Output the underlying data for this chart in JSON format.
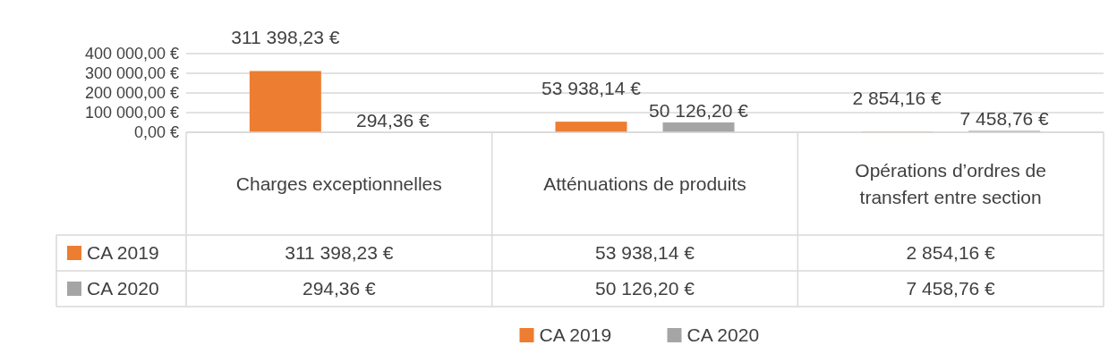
{
  "chart_data": {
    "type": "bar",
    "categories": [
      "Charges exceptionnelles",
      "Atténuations de produits",
      "Opérations d’ordres de transfert entre section"
    ],
    "series": [
      {
        "name": "CA 2019",
        "color": "#ed7d31",
        "values": [
          311398.23,
          53938.14,
          2854.16
        ],
        "value_labels": [
          "311 398,23 €",
          "53 938,14 €",
          "2 854,16 €"
        ]
      },
      {
        "name": "CA 2020",
        "color": "#a5a5a5",
        "values": [
          294.36,
          50126.2,
          7458.76
        ],
        "value_labels": [
          "294,36 €",
          "50 126,20 €",
          "7 458,76 €"
        ]
      }
    ],
    "ylim": [
      0,
      400000
    ],
    "yticks": [
      {
        "value": 0,
        "label": "0,00 €"
      },
      {
        "value": 100000,
        "label": "100 000,00 €"
      },
      {
        "value": 200000,
        "label": "200 000,00 €"
      },
      {
        "value": 300000,
        "label": "300 000,00 €"
      },
      {
        "value": 400000,
        "label": "400 000,00 €"
      }
    ],
    "grid": "y",
    "legend": "bottom",
    "data_labels": true
  }
}
